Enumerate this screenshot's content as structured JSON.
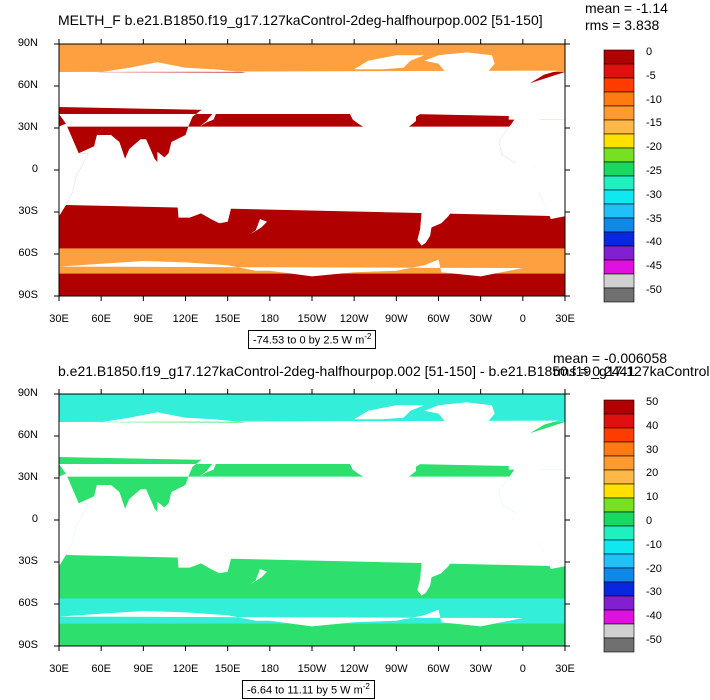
{
  "panels": [
    {
      "title": "MELTH_F b.e21.B1850.f19_g17.127kaControl-2deg-halfhourpop.002 [51-150]",
      "mean_label": "mean = -1.14",
      "rms_label": "rms = 3.838",
      "range_text": "-74.53 to 0 by 2.5  W m",
      "range_exp": "-2",
      "ocean_color": "#b00000",
      "ice_color": "#ffa040",
      "colorbar_labels": [
        "0",
        "-5",
        "-10",
        "-15",
        "-20",
        "-25",
        "-30",
        "-35",
        "-40",
        "-45",
        "-50"
      ]
    },
    {
      "title": "b.e21.B1850.f19_g17.127kaControl-2deg-halfhourpop.002 [51-150] - b.e21.B1850.f19_g17.127kaControl",
      "mean_label": "mean = -0.006058",
      "rms_label": "rms = 0.2441",
      "range_text": "-6.64 to 11.11 by 5  W m",
      "range_exp": "-2",
      "ocean_color": "#2de06e",
      "ice_color": "#33eed8",
      "colorbar_labels": [
        "50",
        "40",
        "30",
        "20",
        "10",
        "0",
        "-10",
        "-20",
        "-30",
        "-40",
        "-50"
      ]
    }
  ],
  "axes": {
    "y_labels": [
      "90N",
      "60N",
      "30N",
      "0",
      "30S",
      "60S",
      "90S"
    ],
    "x_labels": [
      "30E",
      "60E",
      "90E",
      "120E",
      "150E",
      "180",
      "150W",
      "120W",
      "90W",
      "60W",
      "30W",
      "0",
      "30E"
    ]
  },
  "colorbar": {
    "colors": [
      "#b00000",
      "#e01010",
      "#ff3c00",
      "#ff7a10",
      "#ff9a30",
      "#ffb848",
      "#ffe000",
      "#78e020",
      "#18d860",
      "#20f0c0",
      "#10e8f0",
      "#20c0f8",
      "#1088e8",
      "#0828e0",
      "#8020d0",
      "#e010e0",
      "#d0d0d0",
      "#707070"
    ]
  },
  "chart_data": [
    {
      "type": "heatmap",
      "variable": "MELTH_F",
      "title": "MELTH_F b.e21.B1850.f19_g17.127kaControl-2deg-halfhourpop.002 [51-150]",
      "mean": -1.14,
      "rms": 3.838,
      "x_ticks": [
        "30E",
        "60E",
        "90E",
        "120E",
        "150E",
        "180",
        "150W",
        "120W",
        "90W",
        "60W",
        "30W",
        "0",
        "30E"
      ],
      "y_ticks": [
        "90N",
        "60N",
        "30N",
        "0",
        "30S",
        "60S",
        "90S"
      ],
      "contour_min": -74.53,
      "contour_max": 0,
      "contour_interval": 2.5,
      "units": "W m-2",
      "colorbar_levels": [
        0,
        -5,
        -10,
        -15,
        -20,
        -25,
        -30,
        -35,
        -40,
        -45,
        -50
      ]
    },
    {
      "type": "heatmap",
      "title": "b.e21.B1850.f19_g17.127kaControl-2deg-halfhourpop.002 [51-150] - b.e21.B1850.f19_g17.127kaControl",
      "mean": -0.006058,
      "rms": 0.2441,
      "x_ticks": [
        "30E",
        "60E",
        "90E",
        "120E",
        "150E",
        "180",
        "150W",
        "120W",
        "90W",
        "60W",
        "30W",
        "0",
        "30E"
      ],
      "y_ticks": [
        "90N",
        "60N",
        "30N",
        "0",
        "30S",
        "60S",
        "90S"
      ],
      "contour_min": -6.64,
      "contour_max": 11.11,
      "contour_interval": 5,
      "units": "W m-2",
      "colorbar_levels": [
        50,
        40,
        30,
        20,
        10,
        0,
        -10,
        -20,
        -30,
        -40,
        -50
      ]
    }
  ]
}
